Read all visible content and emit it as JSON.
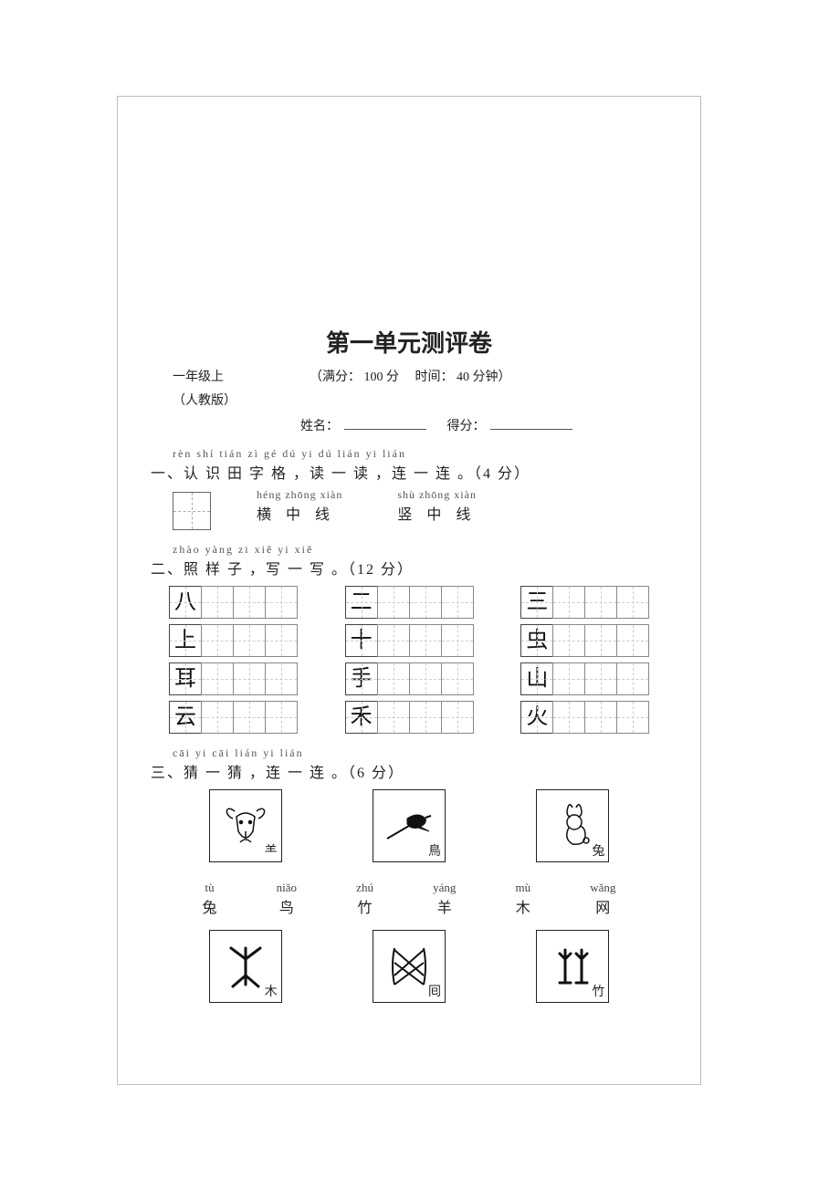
{
  "title": "第一单元测评卷",
  "header": {
    "grade": "一年级上",
    "edition": "（人教版）",
    "full_score_label": "（满分：",
    "full_score": "100 分",
    "time_label": "时间：",
    "time": "40 分钟）",
    "name_label": "姓名：",
    "score_label": "得分："
  },
  "q1": {
    "pinyin": "rèn shí tián zì gé  dú yi dú  lián yi lián",
    "hanzi": "一、认 识 田 字 格 ，读 一 读 ，连 一 连 。（4 分）",
    "items": [
      {
        "pinyin": "héng zhōng xiàn",
        "hanzi": "横  中  线"
      },
      {
        "pinyin": "shù zhōng xiàn",
        "hanzi": "竖  中  线"
      }
    ]
  },
  "q2": {
    "pinyin": "zhào yàng zi  xiě yi xiě",
    "hanzi": "二、照  样  子 ，写 一 写 。（12 分）",
    "rows": [
      [
        "八",
        "二",
        "三"
      ],
      [
        "上",
        "十",
        "虫"
      ],
      [
        "耳",
        "手",
        "山"
      ],
      [
        "云",
        "禾",
        "火"
      ]
    ],
    "trailing_cells": 3
  },
  "q3": {
    "pinyin": "cāi yi cāi  lián yi lián",
    "hanzi": "三、猜 一 猜 ，连 一 连 。（6 分）",
    "top_minis": [
      "⺷",
      "鳥",
      "兔"
    ],
    "words": [
      {
        "pinyin": "tù",
        "hanzi": "兔"
      },
      {
        "pinyin": "niǎo",
        "hanzi": "鸟"
      },
      {
        "pinyin": "zhú",
        "hanzi": "竹"
      },
      {
        "pinyin": "yáng",
        "hanzi": "羊"
      },
      {
        "pinyin": "mù",
        "hanzi": "木"
      },
      {
        "pinyin": "wǎng",
        "hanzi": "网"
      }
    ],
    "bottom_minis": [
      "木",
      "囘",
      "竹"
    ]
  },
  "colors": {
    "text": "#222222",
    "border": "#bdbdbd",
    "cell_border": "#888888"
  }
}
